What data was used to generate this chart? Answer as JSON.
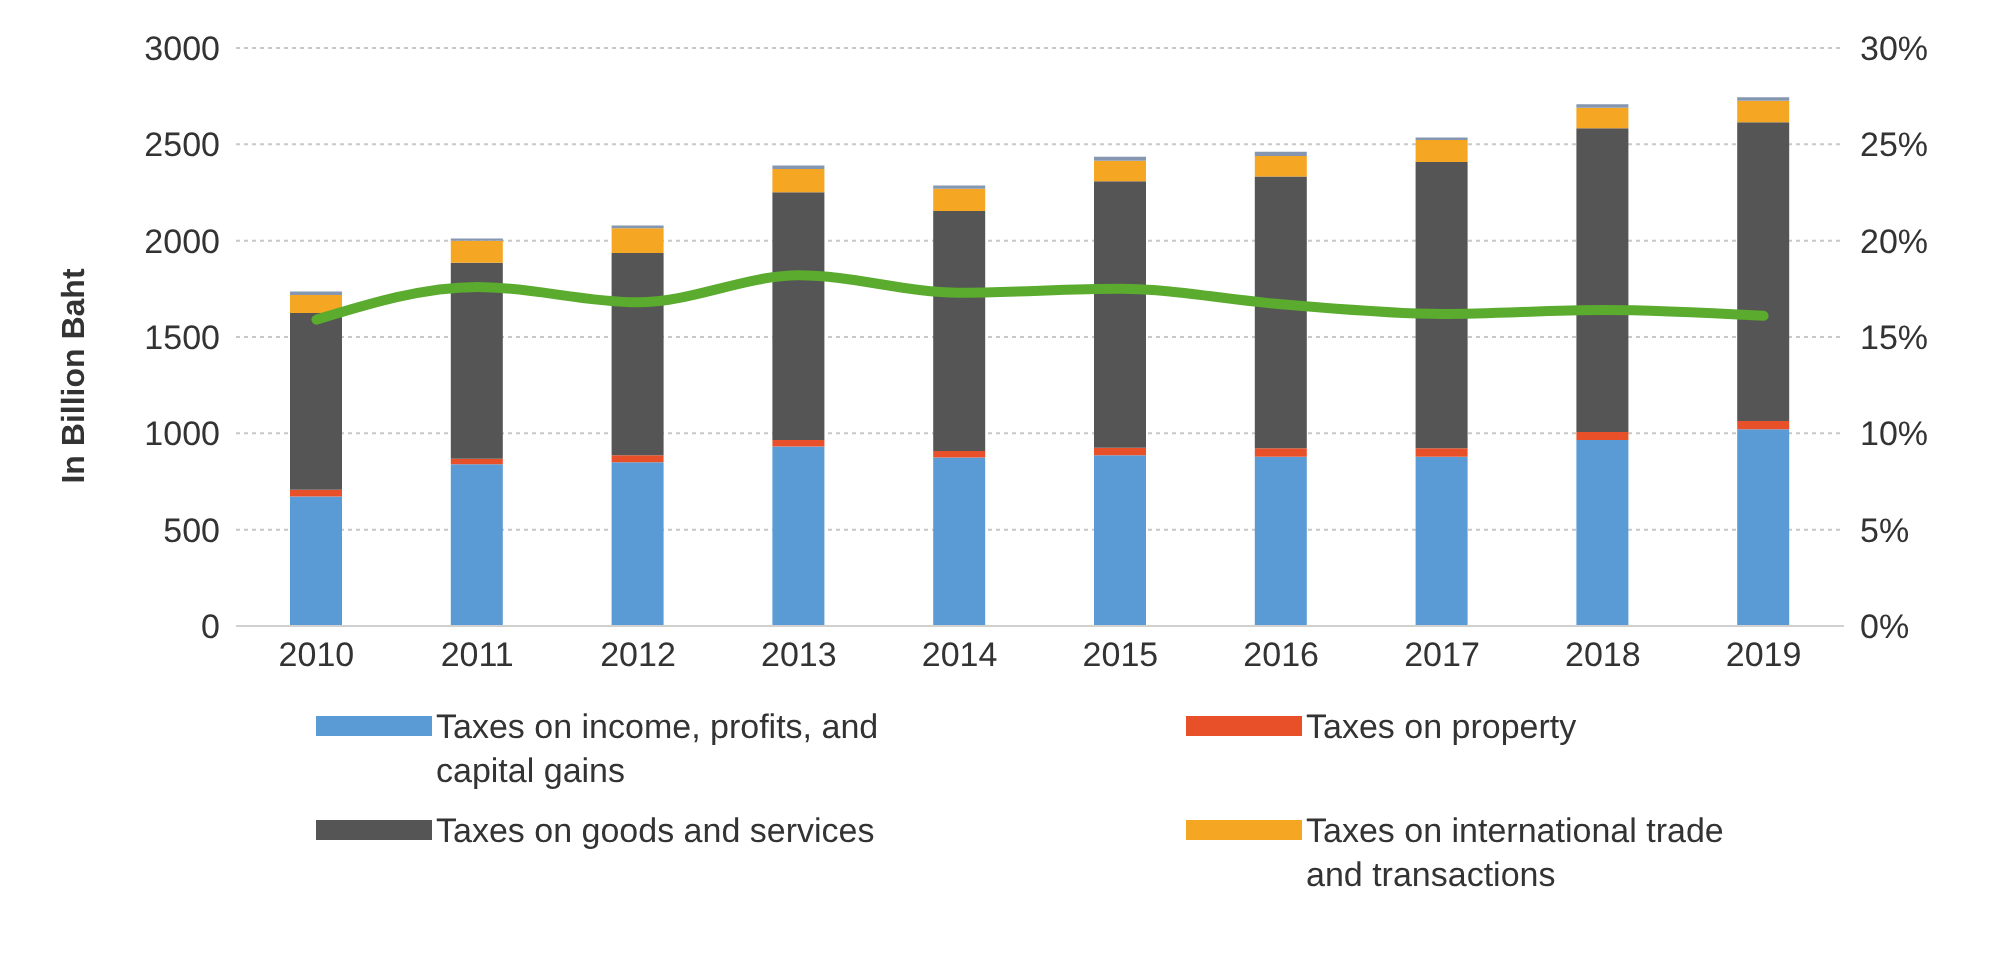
{
  "chart_data": {
    "type": "bar",
    "stacked": true,
    "ylabel": "In Billion Baht",
    "categories": [
      "2010",
      "2011",
      "2012",
      "2013",
      "2014",
      "2015",
      "2016",
      "2017",
      "2018",
      "2019"
    ],
    "series": [
      {
        "name": "Taxes on income, profits, and capital gains",
        "color": "#5b9bd5",
        "values": [
          672,
          839,
          850,
          932,
          875,
          886,
          879,
          879,
          965,
          1021
        ]
      },
      {
        "name": "Taxes on property",
        "color": "#e8502a",
        "values": [
          35,
          29,
          36,
          33,
          33,
          39,
          43,
          43,
          42,
          43
        ]
      },
      {
        "name": "Taxes on goods and services",
        "color": "#555555",
        "values": [
          918,
          1018,
          1050,
          1286,
          1246,
          1383,
          1411,
          1486,
          1576,
          1551
        ]
      },
      {
        "name": "Taxes on international trade and transactions",
        "color": "#f5a623",
        "values": [
          93,
          114,
          129,
          121,
          115,
          107,
          107,
          114,
          107,
          111
        ]
      },
      {
        "color": "#8496b0",
        "values": [
          18,
          11,
          14,
          18,
          17,
          21,
          22,
          14,
          18,
          18
        ]
      },
      {
        "type": "line",
        "axis": "y2",
        "color": "#5aab2e",
        "values": [
          15.9,
          17.6,
          16.8,
          18.2,
          17.3,
          17.5,
          16.7,
          16.2,
          16.4,
          16.1
        ]
      }
    ],
    "ylim": [
      0,
      3000
    ],
    "yticks": [
      0,
      500,
      1000,
      1500,
      2000,
      2500,
      3000
    ],
    "y2lim": [
      0,
      30
    ],
    "y2ticks": [
      {
        "value": 0,
        "label": "0%"
      },
      {
        "value": 5,
        "label": "5%"
      },
      {
        "value": 10,
        "label": "10%"
      },
      {
        "value": 15,
        "label": "15%"
      },
      {
        "value": 20,
        "label": "20%"
      },
      {
        "value": 25,
        "label": "25%"
      },
      {
        "value": 30,
        "label": "30%"
      }
    ],
    "grid": "y",
    "legend": "bottom"
  }
}
